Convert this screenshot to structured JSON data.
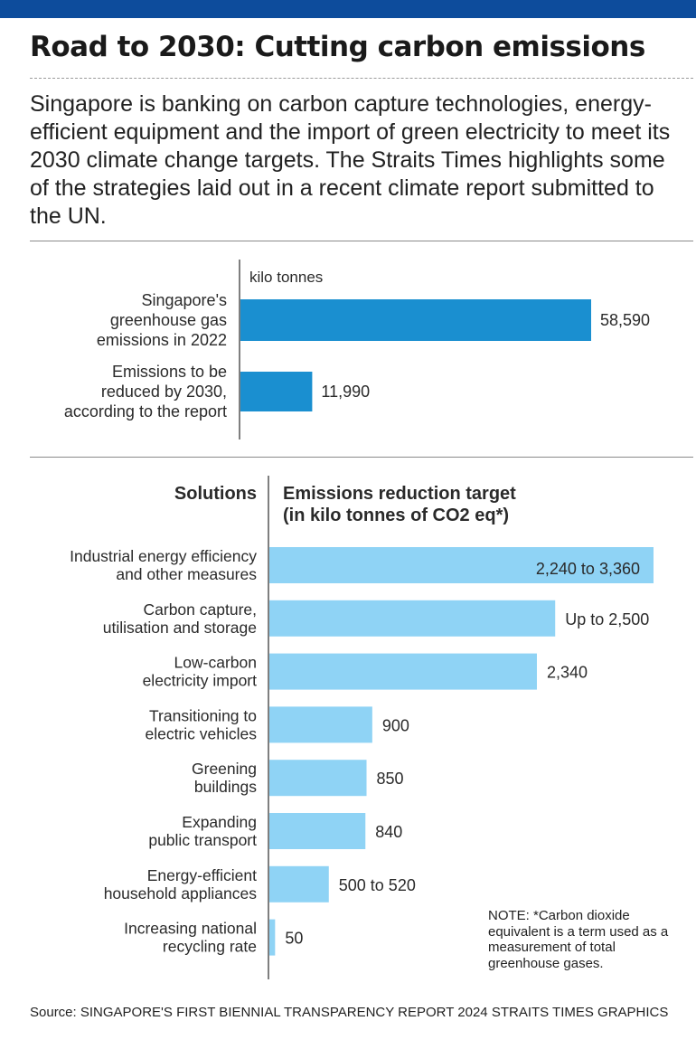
{
  "title": "Road to 2030: Cutting carbon emissions",
  "intro": "Singapore is banking on carbon capture technologies, energy-efficient equipment and the import of green electricity to meet its 2030 climate change targets. The Straits Times highlights some of the strategies laid out in a recent climate report submitted to the UN.",
  "note": "NOTE: *Carbon dioxide equivalent is a term used as a measurement of total greenhouse gases.",
  "source": "Source: SINGAPORE'S FIRST BIENNIAL TRANSPARENCY REPORT 2024   STRAITS TIMES GRAPHICS",
  "colors": {
    "top_bar": "#0d4c9c",
    "dark_bar": "#1a8fd0",
    "light_bar": "#8fd3f5"
  },
  "chart_data": [
    {
      "type": "bar",
      "unit_label": "kilo tonnes",
      "categories": [
        [
          "Singapore's",
          "greenhouse gas",
          "emissions in 2022"
        ],
        [
          "Emissions to be",
          "reduced by 2030,",
          "according to the report"
        ]
      ],
      "values": [
        58590,
        11990
      ],
      "value_labels": [
        "58,590",
        "11,990"
      ],
      "xlim": [
        0,
        62000
      ]
    },
    {
      "type": "bar",
      "category_header": "Solutions",
      "value_header": [
        "Emissions reduction target",
        "(in kilo tonnes of CO2 eq*)"
      ],
      "categories": [
        [
          "Industrial energy efficiency",
          "and other measures"
        ],
        [
          "Carbon capture,",
          "utilisation and storage"
        ],
        [
          "Low-carbon",
          "electricity import"
        ],
        [
          "Transitioning to",
          "electric vehicles"
        ],
        [
          "Greening",
          "buildings"
        ],
        [
          "Expanding",
          "public transport"
        ],
        [
          "Energy-efficient",
          "household appliances"
        ],
        [
          "Increasing national",
          "recycling rate"
        ]
      ],
      "values": [
        3360,
        2500,
        2340,
        900,
        850,
        840,
        520,
        50
      ],
      "value_ranges": [
        [
          2240,
          3360
        ],
        [
          null,
          2500
        ],
        [
          2340,
          2340
        ],
        [
          900,
          900
        ],
        [
          850,
          850
        ],
        [
          840,
          840
        ],
        [
          500,
          520
        ],
        [
          50,
          50
        ]
      ],
      "value_labels": [
        "2,240 to 3,360",
        "Up to 2,500",
        "2,340",
        "900",
        "850",
        "840",
        "500 to 520",
        "50"
      ],
      "xlim": [
        0,
        3360
      ]
    }
  ]
}
